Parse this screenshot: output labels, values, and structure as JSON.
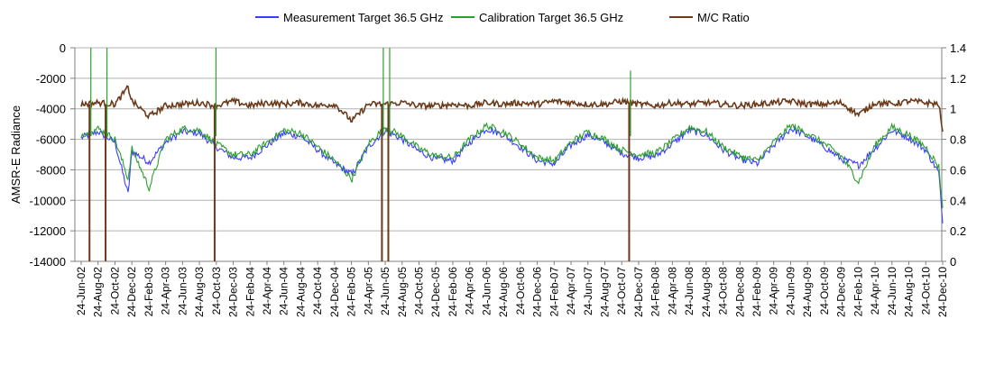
{
  "chart_data": {
    "type": "line",
    "title": "",
    "ylabel": "AMSR-E Radiance",
    "y2label": "",
    "xlabel": "",
    "legend_position": "top",
    "ylim": [
      -14000,
      0
    ],
    "yticks": [
      0,
      -2000,
      -4000,
      -6000,
      -8000,
      -10000,
      -12000,
      -14000
    ],
    "y2lim": [
      0,
      1.4
    ],
    "y2ticks": [
      0,
      0.2,
      0.4,
      0.6,
      0.8,
      1,
      1.2,
      1.4
    ],
    "x_tick_labels": [
      "24-Jun-02",
      "24-Aug-02",
      "24-Oct-02",
      "24-Dec-02",
      "24-Feb-03",
      "24-Apr-03",
      "24-Jun-03",
      "24-Aug-03",
      "24-Oct-03",
      "24-Dec-03",
      "24-Feb-04",
      "24-Apr-04",
      "24-Jun-04",
      "24-Aug-04",
      "24-Oct-04",
      "24-Dec-04",
      "24-Feb-05",
      "24-Apr-05",
      "24-Jun-05",
      "24-Aug-05",
      "24-Oct-05",
      "24-Dec-05",
      "24-Feb-06",
      "24-Apr-06",
      "24-Jun-06",
      "24-Aug-06",
      "24-Oct-06",
      "24-Dec-06",
      "24-Feb-07",
      "24-Apr-07",
      "24-Jun-07",
      "24-Aug-07",
      "24-Oct-07",
      "24-Dec-07",
      "24-Feb-08",
      "24-Apr-08",
      "24-Jun-08",
      "24-Aug-08",
      "24-Oct-08",
      "24-Dec-08",
      "24-Feb-09",
      "24-Apr-09",
      "24-Jun-09",
      "24-Aug-09",
      "24-Oct-09",
      "24-Dec-09",
      "24-Feb-10",
      "24-Apr-10",
      "24-Jun-10",
      "24-Aug-10",
      "24-Oct-10",
      "24-Dec-10"
    ],
    "series": [
      {
        "name": "Measurement Target 36.5 GHz",
        "color": "#3c3cff",
        "axis": "left",
        "x": [
          "2002-06-24",
          "2002-08-24",
          "2002-10-24",
          "2002-12-10",
          "2002-12-24",
          "2003-02-24",
          "2003-04-24",
          "2003-06-24",
          "2003-08-24",
          "2003-10-24",
          "2003-12-24",
          "2004-02-24",
          "2004-04-24",
          "2004-06-24",
          "2004-08-24",
          "2004-10-24",
          "2004-12-24",
          "2005-02-24",
          "2005-04-24",
          "2005-06-24",
          "2005-08-24",
          "2005-10-24",
          "2005-12-24",
          "2006-02-24",
          "2006-04-24",
          "2006-06-24",
          "2006-08-24",
          "2006-10-24",
          "2006-12-24",
          "2007-02-24",
          "2007-04-24",
          "2007-06-24",
          "2007-08-24",
          "2007-10-24",
          "2007-12-24",
          "2008-02-24",
          "2008-04-24",
          "2008-06-24",
          "2008-08-24",
          "2008-10-24",
          "2008-12-24",
          "2009-02-24",
          "2009-04-24",
          "2009-06-24",
          "2009-08-24",
          "2009-10-24",
          "2009-12-24",
          "2010-02-24",
          "2010-04-24",
          "2010-06-24",
          "2010-08-24",
          "2010-10-24",
          "2010-12-10",
          "2010-12-24"
        ],
        "y": [
          -5900,
          -5500,
          -6200,
          -9600,
          -6800,
          -7500,
          -6200,
          -5500,
          -5600,
          -6500,
          -7200,
          -7200,
          -6400,
          -5600,
          -5800,
          -6700,
          -7600,
          -8300,
          -6500,
          -5400,
          -6000,
          -6800,
          -7300,
          -7400,
          -6200,
          -5300,
          -5700,
          -6500,
          -7400,
          -7600,
          -6400,
          -5700,
          -6200,
          -6900,
          -7200,
          -7100,
          -6300,
          -5400,
          -5700,
          -6700,
          -7300,
          -7600,
          -6400,
          -5300,
          -5800,
          -6500,
          -7300,
          -7700,
          -6600,
          -5400,
          -5900,
          -6700,
          -8200,
          -11500
        ]
      },
      {
        "name": "Calibration Target 36.5 GHz",
        "color": "#2ca02c",
        "axis": "left",
        "x": [
          "2002-06-24",
          "2002-08-24",
          "2002-10-24",
          "2002-12-10",
          "2002-12-24",
          "2003-02-24",
          "2003-04-24",
          "2003-06-24",
          "2003-08-24",
          "2003-10-24",
          "2003-12-24",
          "2004-02-24",
          "2004-04-24",
          "2004-06-24",
          "2004-08-24",
          "2004-10-24",
          "2004-12-24",
          "2005-02-24",
          "2005-04-24",
          "2005-06-24",
          "2005-08-24",
          "2005-10-24",
          "2005-12-24",
          "2006-02-24",
          "2006-04-24",
          "2006-06-24",
          "2006-08-24",
          "2006-10-24",
          "2006-12-24",
          "2007-02-24",
          "2007-04-24",
          "2007-06-24",
          "2007-08-24",
          "2007-10-24",
          "2007-12-24",
          "2008-02-24",
          "2008-04-24",
          "2008-06-24",
          "2008-08-24",
          "2008-10-24",
          "2008-12-24",
          "2009-02-24",
          "2009-04-24",
          "2009-06-24",
          "2009-08-24",
          "2009-10-24",
          "2009-12-24",
          "2010-02-24",
          "2010-04-24",
          "2010-06-24",
          "2010-08-24",
          "2010-10-24",
          "2010-12-10",
          "2010-12-24"
        ],
        "y": [
          -5700,
          -5300,
          -6000,
          -8600,
          -6600,
          -9200,
          -6000,
          -5300,
          -5400,
          -6300,
          -7000,
          -7000,
          -6200,
          -5400,
          -5600,
          -6500,
          -7400,
          -8600,
          -6300,
          -5200,
          -5800,
          -6600,
          -7100,
          -7200,
          -6000,
          -5100,
          -5500,
          -6300,
          -7200,
          -7400,
          -6200,
          -5500,
          -6000,
          -6700,
          -7000,
          -6900,
          -6100,
          -5200,
          -5500,
          -6500,
          -7100,
          -7400,
          -6200,
          -5100,
          -5600,
          -6300,
          -7100,
          -8800,
          -6400,
          -5200,
          -5700,
          -6500,
          -7800,
          -10500
        ]
      },
      {
        "name": "M/C Ratio",
        "color": "#6b3a1a",
        "axis": "right",
        "x": [
          "2002-06-24",
          "2002-08-24",
          "2002-10-24",
          "2002-12-10",
          "2002-12-24",
          "2003-02-24",
          "2003-04-24",
          "2003-06-24",
          "2003-08-24",
          "2003-10-24",
          "2003-12-24",
          "2004-02-24",
          "2004-04-24",
          "2004-06-24",
          "2004-08-24",
          "2004-10-24",
          "2004-12-24",
          "2005-02-24",
          "2005-04-24",
          "2005-06-24",
          "2005-08-24",
          "2005-10-24",
          "2005-12-24",
          "2006-02-24",
          "2006-04-24",
          "2006-06-24",
          "2006-08-24",
          "2006-10-24",
          "2006-12-24",
          "2007-02-24",
          "2007-04-24",
          "2007-06-24",
          "2007-08-24",
          "2007-10-24",
          "2007-12-24",
          "2008-02-24",
          "2008-04-24",
          "2008-06-24",
          "2008-08-24",
          "2008-10-24",
          "2008-12-24",
          "2009-02-24",
          "2009-04-24",
          "2009-06-24",
          "2009-08-24",
          "2009-10-24",
          "2009-12-24",
          "2010-02-24",
          "2010-04-24",
          "2010-06-24",
          "2010-08-24",
          "2010-10-24",
          "2010-12-10",
          "2010-12-24"
        ],
        "y": [
          1.03,
          1.04,
          1.03,
          1.14,
          1.05,
          0.95,
          1.02,
          1.03,
          1.04,
          1.02,
          1.05,
          1.02,
          1.04,
          1.03,
          1.04,
          1.02,
          1.03,
          0.92,
          1.03,
          1.03,
          1.04,
          1.02,
          1.02,
          1.03,
          1.02,
          1.04,
          1.03,
          1.04,
          1.03,
          1.05,
          1.04,
          1.03,
          1.03,
          1.05,
          1.03,
          1.02,
          1.04,
          1.03,
          1.04,
          1.03,
          1.02,
          1.03,
          1.04,
          1.05,
          1.03,
          1.03,
          1.04,
          0.96,
          1.04,
          1.03,
          1.05,
          1.04,
          1.03,
          0.85
        ]
      }
    ],
    "spikes": [
      {
        "date": "2002-07-24",
        "ratio": 0,
        "cal": 0
      },
      {
        "date": "2002-09-20",
        "ratio": 0,
        "cal": 0
      },
      {
        "date": "2003-10-18",
        "ratio": 0,
        "cal": 0
      },
      {
        "date": "2005-06-12",
        "ratio": 0,
        "cal": 0
      },
      {
        "date": "2005-07-05",
        "ratio": 0,
        "cal": 0
      },
      {
        "date": "2007-11-20",
        "ratio": 0,
        "cal": -1500
      }
    ]
  }
}
